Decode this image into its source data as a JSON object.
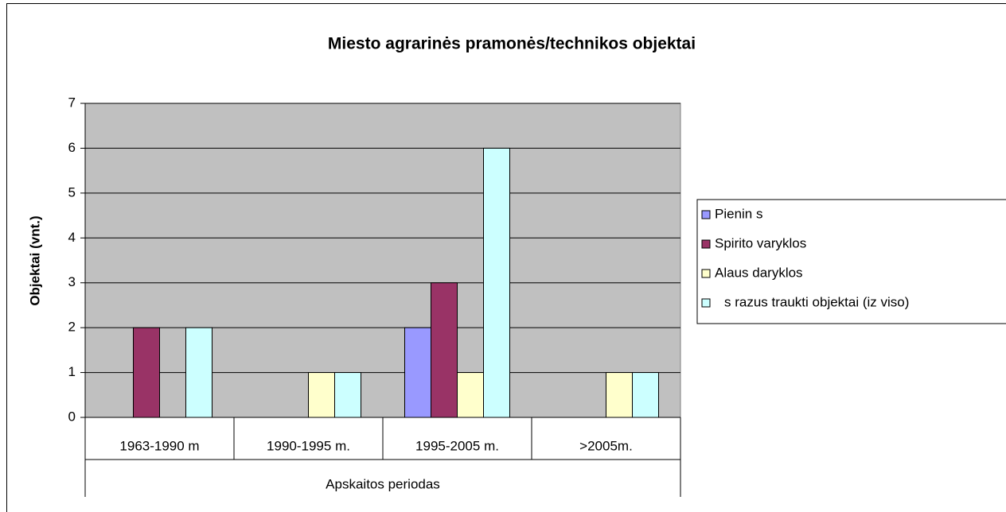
{
  "chart_data": {
    "type": "bar",
    "title": "Miesto agrarinės pramonės/technikos objektai",
    "y_label": "Objektai (vnt.)",
    "x_label": "Apskaitos periodas",
    "categories": [
      "1963-1990 m",
      "1990-1995 m.",
      "1995-2005 m.",
      ">2005m."
    ],
    "series": [
      {
        "name": "Pienin s",
        "color": "#9999ff",
        "values": [
          0,
          0,
          2,
          0
        ]
      },
      {
        "name": "Spirito varyklos",
        "color": "#993366",
        "values": [
          2,
          0,
          3,
          0
        ]
      },
      {
        "name": "Alaus daryklos",
        "color": "#ffffcc",
        "values": [
          0,
          1,
          1,
          1
        ]
      },
      {
        "name": "s razus traukti objektai (iz viso)",
        "color": "#ccffff",
        "values": [
          2,
          1,
          6,
          1
        ]
      }
    ],
    "ylim": [
      0,
      7
    ],
    "yticks": [
      0,
      1,
      2,
      3,
      4,
      5,
      6,
      7
    ],
    "grid": true,
    "legend": "right"
  }
}
